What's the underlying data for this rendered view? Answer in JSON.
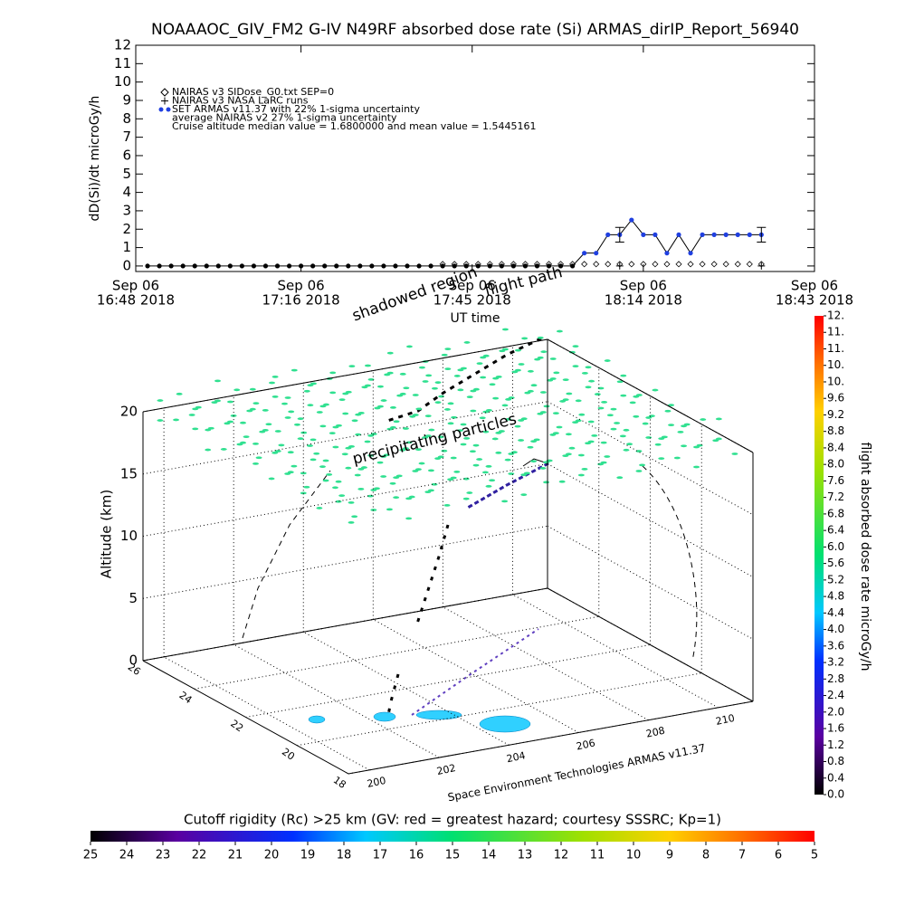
{
  "chart_data": [
    {
      "type": "line",
      "title": "NOAAAOC_GIV_FM2 G-IV   N49RF  absorbed dose rate (Si) ARMAS_dirIP_Report_56940",
      "ylabel": "dD(Si)/dt microGy/h",
      "xlabel": "UT time",
      "xlim": [
        "16:48",
        "18:43"
      ],
      "xticks": [
        {
          "value": "16:48",
          "label": [
            "Sep 06",
            "16:48 2018"
          ]
        },
        {
          "value": "17:16",
          "label": [
            "Sep 06",
            "17:16 2018"
          ]
        },
        {
          "value": "17:45",
          "label": [
            "Sep 06",
            "17:45 2018"
          ]
        },
        {
          "value": "18:14",
          "label": [
            "Sep 06",
            "18:14 2018"
          ]
        },
        {
          "value": "18:43",
          "label": [
            "Sep 06",
            "18:43 2018"
          ]
        }
      ],
      "ylim": [
        -0.3,
        12
      ],
      "yticks": [
        0,
        1,
        2,
        3,
        4,
        5,
        6,
        7,
        8,
        9,
        10,
        11,
        12
      ],
      "x": [
        "16:50",
        "16:52",
        "16:54",
        "16:56",
        "16:58",
        "17:00",
        "17:02",
        "17:04",
        "17:06",
        "17:08",
        "17:10",
        "17:12",
        "17:14",
        "17:16",
        "17:18",
        "17:20",
        "17:22",
        "17:24",
        "17:26",
        "17:28",
        "17:30",
        "17:32",
        "17:34",
        "17:36",
        "17:38",
        "17:40",
        "17:42",
        "17:44",
        "17:46",
        "17:48",
        "17:50",
        "17:52",
        "17:54",
        "17:56",
        "17:58",
        "18:00",
        "18:02",
        "18:04",
        "18:06",
        "18:08",
        "18:10",
        "18:12",
        "18:14",
        "18:16",
        "18:18",
        "18:20",
        "18:22",
        "18:24",
        "18:26",
        "18:28",
        "18:30",
        "18:32",
        "18:34"
      ],
      "series": [
        {
          "name": "NAIRAS v3 SIDose_G0.txt SEP=0",
          "color": "#000000",
          "marker": "diamond",
          "values": [
            null,
            null,
            null,
            null,
            null,
            null,
            null,
            null,
            null,
            null,
            null,
            null,
            null,
            null,
            null,
            null,
            null,
            null,
            null,
            null,
            null,
            null,
            null,
            null,
            null,
            0.1,
            0.1,
            0.1,
            0.1,
            0.1,
            0.1,
            0.1,
            0.1,
            0.1,
            0.1,
            0.1,
            0.1,
            0.1,
            0.1,
            0.1,
            0.1,
            0.1,
            0.1,
            0.1,
            0.1,
            0.1,
            0.1,
            0.1,
            0.1,
            0.1,
            0.1,
            0.1,
            0.1
          ]
        },
        {
          "name": "NAIRAS v3 NASA LaRC runs",
          "color": "#000000",
          "marker": "plus",
          "values": [
            null,
            null,
            null,
            null,
            null,
            null,
            null,
            null,
            null,
            null,
            null,
            null,
            null,
            null,
            null,
            null,
            null,
            null,
            null,
            null,
            null,
            null,
            null,
            null,
            null,
            null,
            null,
            null,
            null,
            null,
            null,
            null,
            null,
            null,
            null,
            null,
            null,
            null,
            null,
            null,
            0,
            null,
            null,
            null,
            null,
            null,
            null,
            null,
            null,
            null,
            null,
            null,
            0
          ]
        },
        {
          "name": "SET ARMAS v11.37 with 22% 1-sigma uncertainty",
          "color": "#2040e0",
          "marker": "dot",
          "values": [
            0,
            0,
            0,
            0,
            0,
            0,
            0,
            0,
            0,
            0,
            0,
            0,
            0,
            0,
            0,
            0,
            0,
            0,
            0,
            0,
            0,
            0,
            0,
            0,
            0,
            0,
            0,
            0,
            0,
            0,
            0,
            0,
            0,
            0,
            0,
            0,
            0,
            0.7,
            0.7,
            1.7,
            1.7,
            2.5,
            1.7,
            1.7,
            0.7,
            1.7,
            0.7,
            1.7,
            1.7,
            1.7,
            1.7,
            1.7,
            1.7
          ],
          "errors": [
            null,
            null,
            null,
            null,
            null,
            null,
            null,
            null,
            null,
            null,
            null,
            null,
            null,
            null,
            null,
            null,
            null,
            null,
            null,
            null,
            null,
            null,
            null,
            null,
            null,
            null,
            null,
            null,
            null,
            null,
            null,
            null,
            null,
            null,
            null,
            null,
            null,
            null,
            null,
            null,
            0.4,
            null,
            null,
            null,
            null,
            null,
            null,
            null,
            null,
            null,
            null,
            null,
            0.4
          ]
        }
      ],
      "notes": [
        "average NAIRAS v2 27% 1-sigma uncertainty",
        "Cruise altitude median value = 1.6800000 and mean value = 1.5445161"
      ]
    },
    {
      "type": "surface3d",
      "zlabel": "Altitude (km)",
      "xlim": [
        199.4,
        211
      ],
      "xticks": [
        200,
        202,
        204,
        206,
        208,
        210
      ],
      "ylim": [
        18,
        26
      ],
      "yticks": [
        18,
        20,
        22,
        24,
        26
      ],
      "zlim": [
        0,
        20
      ],
      "zticks": [
        0,
        5,
        10,
        15,
        20
      ],
      "annotations": [
        "shadowed region",
        "flight path",
        "precipitating particles",
        "Space Environment Technologies ARMAS v11.37"
      ]
    },
    {
      "type": "colorbar",
      "orientation": "vertical",
      "label": "flight absorbed dose rate microGy/h",
      "lim": [
        0,
        11.6
      ],
      "ticks": [
        {
          "value": 0.0,
          "label": "0.0"
        },
        0.4,
        0.8,
        1.2,
        1.6,
        {
          "value": 2.0,
          "label": "2.0"
        },
        2.4,
        2.8,
        3.2,
        3.6,
        {
          "value": 4.0,
          "label": "4.0"
        },
        4.4,
        4.8,
        5.2,
        5.6,
        {
          "value": 6.0,
          "label": "6.0"
        },
        6.4,
        6.8,
        7.2,
        7.6,
        {
          "value": 8.0,
          "label": "8.0"
        },
        8.4,
        8.8,
        9.2,
        9.6,
        {
          "value": 10.0,
          "label": "10."
        },
        {
          "value": 10.4,
          "label": "10."
        },
        {
          "value": 10.8,
          "label": "11."
        },
        {
          "value": 11.2,
          "label": "11."
        },
        {
          "value": 11.6,
          "label": "12."
        }
      ]
    },
    {
      "type": "colorbar",
      "orientation": "horizontal",
      "label": "Cutoff rigidity (Rc) >25 km (GV: red = greatest hazard; courtesy SSSRC; Kp=1)",
      "lim": [
        25,
        5
      ],
      "ticks": [
        25,
        24,
        23,
        22,
        21,
        20,
        19,
        18,
        17,
        16,
        15,
        14,
        13,
        12,
        11,
        10,
        9,
        8,
        7,
        6,
        5
      ]
    }
  ]
}
